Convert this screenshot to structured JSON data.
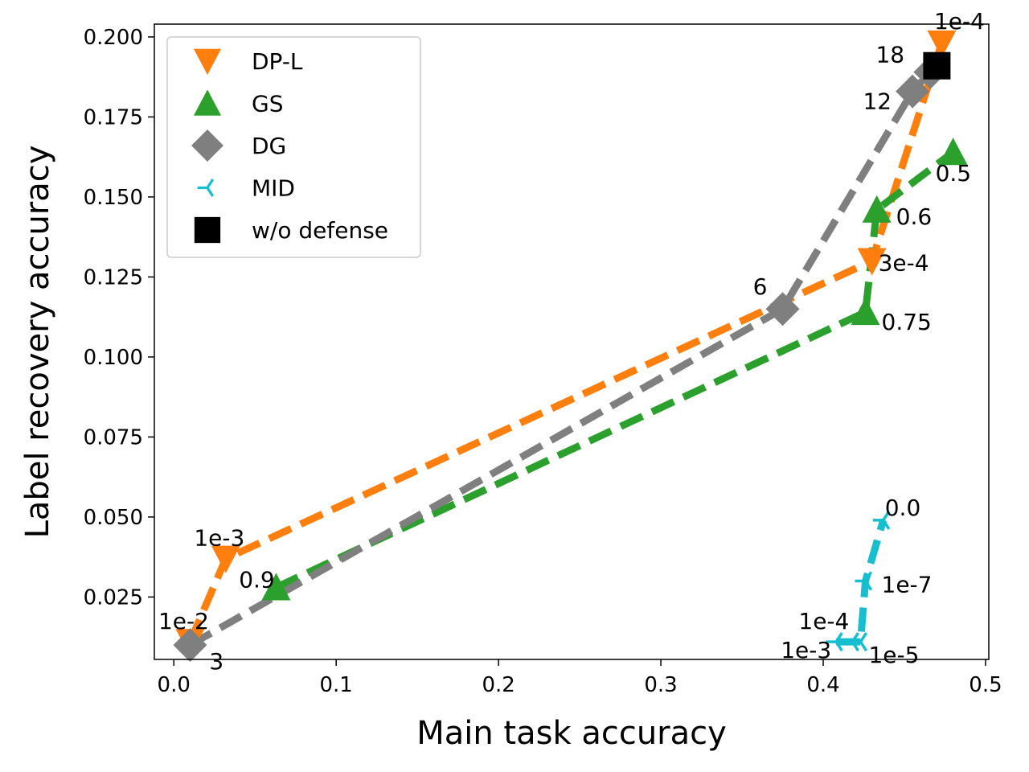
{
  "chart_data": {
    "type": "line",
    "title": "",
    "xlabel": "Main task accuracy",
    "ylabel": "Label recovery accuracy",
    "xlim": [
      -0.012,
      0.502
    ],
    "ylim": [
      0.0055,
      0.204
    ],
    "xticks": [
      0.0,
      0.1,
      0.2,
      0.3,
      0.4,
      0.5
    ],
    "xtick_labels": [
      "0.0",
      "0.1",
      "0.2",
      "0.3",
      "0.4",
      "0.5"
    ],
    "yticks": [
      0.025,
      0.05,
      0.075,
      0.1,
      0.125,
      0.15,
      0.175,
      0.2
    ],
    "ytick_labels": [
      "0.025",
      "0.050",
      "0.075",
      "0.100",
      "0.125",
      "0.150",
      "0.175",
      "0.200"
    ],
    "legend_position": "top-left",
    "series": [
      {
        "name": "DP-L",
        "color": "#ff7f0e",
        "marker": "triangle-down",
        "line": "dashed",
        "points": [
          {
            "x": 0.01,
            "y": 0.011,
            "label": "1e-2"
          },
          {
            "x": 0.032,
            "y": 0.037,
            "label": "1e-3"
          },
          {
            "x": 0.43,
            "y": 0.13,
            "label": "3e-4"
          },
          {
            "x": 0.473,
            "y": 0.198,
            "label": "1e-4"
          }
        ]
      },
      {
        "name": "GS",
        "color": "#2ca02c",
        "marker": "triangle-up",
        "line": "dashed",
        "points": [
          {
            "x": 0.063,
            "y": 0.028,
            "label": "0.9"
          },
          {
            "x": 0.426,
            "y": 0.114,
            "label": "0.75"
          },
          {
            "x": 0.433,
            "y": 0.146,
            "label": "0.6"
          },
          {
            "x": 0.48,
            "y": 0.164,
            "label": "0.5"
          }
        ]
      },
      {
        "name": "DG",
        "color": "#7f7f7f",
        "marker": "diamond",
        "line": "dashed",
        "points": [
          {
            "x": 0.01,
            "y": 0.01,
            "label": "3"
          },
          {
            "x": 0.375,
            "y": 0.115,
            "label": "6"
          },
          {
            "x": 0.455,
            "y": 0.183,
            "label": "12"
          },
          {
            "x": 0.466,
            "y": 0.189,
            "label": "18"
          }
        ]
      },
      {
        "name": "MID",
        "color": "#17becf",
        "marker": "tri-left",
        "line": "dashed",
        "points": [
          {
            "x": 0.408,
            "y": 0.011,
            "label": "1e-3"
          },
          {
            "x": 0.418,
            "y": 0.011,
            "label": "1e-4"
          },
          {
            "x": 0.423,
            "y": 0.011,
            "label": "1e-5"
          },
          {
            "x": 0.426,
            "y": 0.03,
            "label": "1e-7"
          },
          {
            "x": 0.437,
            "y": 0.049,
            "label": "0.0"
          }
        ]
      },
      {
        "name": "w/o defense",
        "color": "#000000",
        "marker": "square",
        "line": "none",
        "points": [
          {
            "x": 0.47,
            "y": 0.191,
            "label": ""
          }
        ]
      }
    ]
  }
}
